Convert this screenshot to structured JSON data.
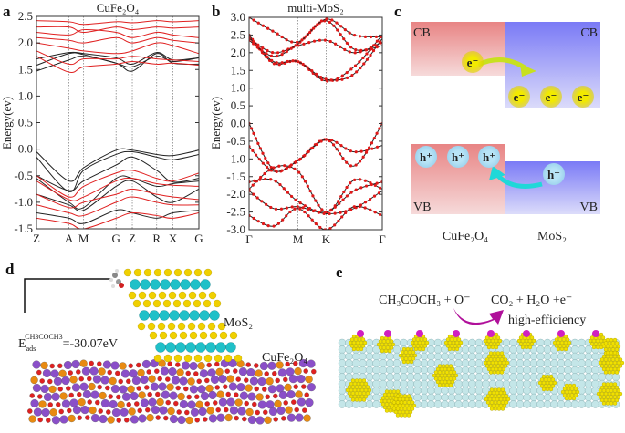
{
  "panels": {
    "a": "a",
    "b": "b",
    "c": "c",
    "d": "d",
    "e": "e"
  },
  "chart_data": [
    {
      "type": "line",
      "title": "CuFe₂O₄",
      "ylabel": "Energy(ev)",
      "xlabel": "",
      "ylim": [
        -1.5,
        2.5
      ],
      "yticks": [
        "2.5",
        "2.0",
        "1.5",
        "1.0",
        "0.5",
        "0.0",
        "-0.5",
        "-1.0",
        "-1.5"
      ],
      "ytick_values": [
        2.5,
        2.0,
        1.5,
        1.0,
        0.5,
        0.0,
        -0.5,
        -1.0,
        -1.5
      ],
      "kpoints": [
        {
          "label": "Z",
          "k": 0
        },
        {
          "label": "A",
          "k": 0.2
        },
        {
          "label": "M",
          "k": 0.29
        },
        {
          "label": "G",
          "k": 0.49
        },
        {
          "label": "Z",
          "k": 0.59
        },
        {
          "label": "R",
          "k": 0.74
        },
        {
          "label": "X",
          "k": 0.84
        },
        {
          "label": "G",
          "k": 1.0
        }
      ],
      "grid": "dotted vertical lines at high-symmetry points",
      "series": [
        {
          "color": "#222222",
          "bands": [
            [
              1.47,
              1.68,
              1.75,
              1.62,
              1.47,
              1.8,
              1.62,
              1.6
            ],
            [
              1.58,
              1.8,
              1.78,
              1.62,
              1.55,
              1.75,
              1.65,
              1.72
            ],
            [
              1.7,
              1.82,
              1.8,
              1.72,
              1.6,
              1.82,
              1.68,
              1.72
            ],
            [
              -0.05,
              -0.6,
              -0.35,
              -0.02,
              -0.02,
              -0.1,
              -0.12,
              -0.02
            ],
            [
              -0.15,
              -0.8,
              -0.4,
              -0.1,
              -0.05,
              -0.15,
              -0.2,
              -0.1
            ],
            [
              -0.5,
              -0.78,
              -0.6,
              -0.3,
              -0.15,
              -0.4,
              -0.62,
              -0.55
            ],
            [
              -0.55,
              -1.0,
              -1.1,
              -0.55,
              -0.55,
              -0.7,
              -0.65,
              -0.6
            ],
            [
              -0.85,
              -1.05,
              -1.15,
              -0.7,
              -0.6,
              -0.9,
              -1.0,
              -0.75
            ],
            [
              -1.2,
              -1.3,
              -1.4,
              -1.15,
              -1.2,
              -1.3,
              -1.2,
              -1.15
            ]
          ]
        },
        {
          "color": "#e02020",
          "bands": [
            [
              1.75,
              1.45,
              1.55,
              1.6,
              1.65,
              1.6,
              1.62,
              1.58
            ],
            [
              1.85,
              1.6,
              1.7,
              1.7,
              1.75,
              1.7,
              1.68,
              1.65
            ],
            [
              2.0,
              1.9,
              1.85,
              1.8,
              1.85,
              2.0,
              1.95,
              1.8
            ],
            [
              2.1,
              2.05,
              2.0,
              2.1,
              2.0,
              2.1,
              2.05,
              2.0
            ],
            [
              2.2,
              2.15,
              2.25,
              2.2,
              2.1,
              2.2,
              2.15,
              2.1
            ],
            [
              2.3,
              2.3,
              2.2,
              2.3,
              2.25,
              2.3,
              2.28,
              2.3
            ],
            [
              2.42,
              2.4,
              2.35,
              2.4,
              2.38,
              2.42,
              2.4,
              2.42
            ],
            [
              -0.5,
              -0.9,
              -0.7,
              -0.45,
              -0.4,
              -0.55,
              -0.6,
              -0.45
            ],
            [
              -0.6,
              -0.95,
              -0.9,
              -0.6,
              -0.55,
              -0.65,
              -0.68,
              -0.7
            ],
            [
              -0.85,
              -1.1,
              -1.0,
              -0.85,
              -0.75,
              -0.85,
              -0.9,
              -0.95
            ],
            [
              -1.05,
              -1.2,
              -1.25,
              -1.0,
              -0.9,
              -1.0,
              -1.05,
              -1.05
            ],
            [
              -1.3,
              -1.4,
              -1.5,
              -1.3,
              -1.2,
              -1.25,
              -1.3,
              -1.2
            ]
          ]
        }
      ]
    },
    {
      "type": "line",
      "title": "multi-MoS₂",
      "ylabel": "Energy(ev)",
      "xlabel": "",
      "ylim": [
        -3.0,
        3.0
      ],
      "yticks": [
        "3.0",
        "2.5",
        "2.0",
        "1.5",
        "1.0",
        "0.5",
        "0.0",
        "-0.5",
        "-1.0",
        "-1.5",
        "-2.0",
        "-2.5",
        "-3.0"
      ],
      "ytick_values": [
        3.0,
        2.5,
        2.0,
        1.5,
        1.0,
        0.5,
        0.0,
        -0.5,
        -1.0,
        -1.5,
        -2.0,
        -2.5,
        -3.0
      ],
      "kpoints": [
        {
          "label": "Γ",
          "k": 0
        },
        {
          "label": "M",
          "k": 1.0
        },
        {
          "label": "K",
          "k": 1.58
        },
        {
          "label": "Γ",
          "k": 2.73
        }
      ],
      "k_samples": [
        0,
        0.5,
        1.0,
        1.58,
        2.15,
        2.73
      ],
      "grid": "dotted vertical lines at high-symmetry points",
      "markers": "red dots on bands",
      "series": [
        {
          "color": "#222222",
          "marker_color": "#e01818",
          "bands": [
            [
              2.5,
              1.7,
              1.75,
              1.2,
              1.6,
              2.5
            ],
            [
              2.45,
              1.75,
              1.75,
              1.25,
              1.4,
              2.4
            ],
            [
              2.4,
              2.0,
              2.2,
              2.35,
              2.0,
              2.3
            ],
            [
              2.35,
              1.9,
              2.25,
              2.9,
              2.1,
              2.2
            ],
            [
              3.0,
              2.6,
              2.3,
              2.95,
              2.5,
              2.45
            ],
            [
              0.0,
              -1.3,
              -1.05,
              -0.45,
              -1.2,
              0.0
            ],
            [
              -0.65,
              -1.35,
              -1.05,
              -0.45,
              -0.8,
              -0.62
            ],
            [
              -1.85,
              -1.25,
              -1.35,
              -2.5,
              -1.6,
              -1.85
            ],
            [
              -1.65,
              -1.6,
              -2.2,
              -2.5,
              -1.9,
              -1.65
            ],
            [
              -1.9,
              -2.4,
              -2.35,
              -2.55,
              -2.4,
              -1.9
            ],
            [
              -2.6,
              -2.9,
              -2.4,
              -3.0,
              -2.35,
              -2.6
            ]
          ]
        }
      ]
    }
  ],
  "panel_c": {
    "cb_left": "CB",
    "cb_right": "CB",
    "vb_left": "VB",
    "vb_right": "VB",
    "electron": "e⁻",
    "hole": "h⁺",
    "label_left": "CuFe₂O₄",
    "label_right": "MoS₂",
    "colors": {
      "pink": "#e88a8a",
      "blue": "#7f7ff5",
      "electron": "#e8e000",
      "hole": "#a8dcf0",
      "electron_arrow": "#c8e020",
      "hole_arrow": "#20d8d8"
    }
  },
  "panel_d": {
    "eads_main": "E",
    "eads_sub": "ads",
    "eads_sup": "CH3COCH3",
    "eads_value": "=-30.07eV",
    "mos2_label": "MoS₂",
    "cufe2o4_label": "CuFe₂O₄"
  },
  "panel_e": {
    "reactants": "CH₃COCH₃ + O⁻",
    "products": "CO₂ + H₂O +e⁻",
    "note": "high-efficiency",
    "arrow_color": "#b0109a"
  }
}
